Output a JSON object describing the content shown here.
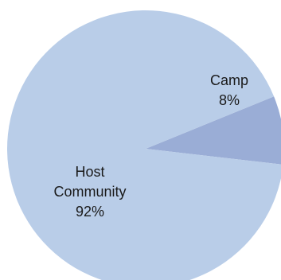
{
  "chart_data": {
    "type": "pie",
    "slices": [
      {
        "label": "Camp",
        "pct_label": "8%",
        "value": 8,
        "color": "#9aadd6"
      },
      {
        "label": "Host Community",
        "pct_label": "92%",
        "value": 92,
        "color": "#b9cde8"
      }
    ]
  }
}
